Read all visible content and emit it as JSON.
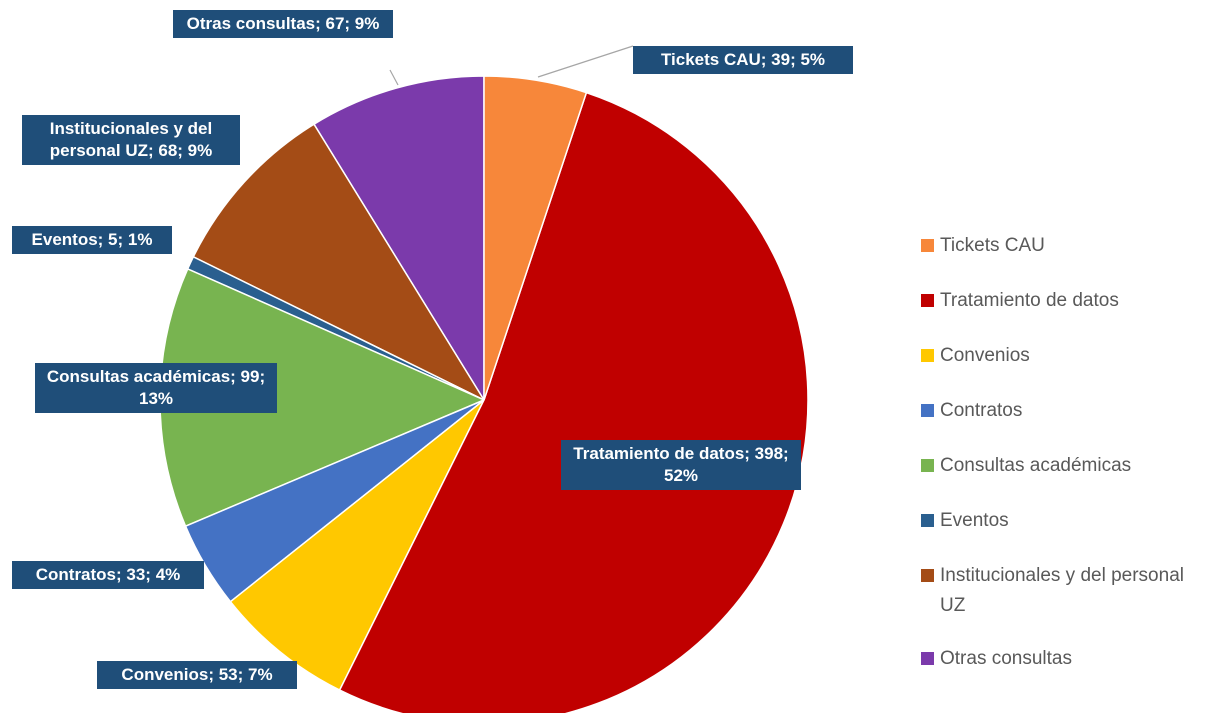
{
  "chart_data": {
    "type": "pie",
    "categories": [
      "Tickets CAU",
      "Tratamiento de datos",
      "Convenios",
      "Contratos",
      "Consultas académicas",
      "Eventos",
      "Institucionales y del personal UZ",
      "Otras consultas"
    ],
    "values": [
      39,
      398,
      53,
      33,
      99,
      5,
      68,
      67
    ],
    "value_labels": [
      "Tickets CAU; 39; 5%",
      "Tratamiento de datos; 398; 52%",
      "Convenios; 53; 7%",
      "Contratos; 33; 4%",
      "Consultas académicas; 99; 13%",
      "Eventos; 5; 1%",
      "Institucionales y del personal UZ; 68; 9%",
      "Otras consultas; 67; 9%"
    ],
    "colors": [
      "#f7873a",
      "#c00000",
      "#ffc800",
      "#4472c4",
      "#78b450",
      "#2a5f8f",
      "#a44c16",
      "#7b3aab"
    ],
    "legend": "right"
  }
}
